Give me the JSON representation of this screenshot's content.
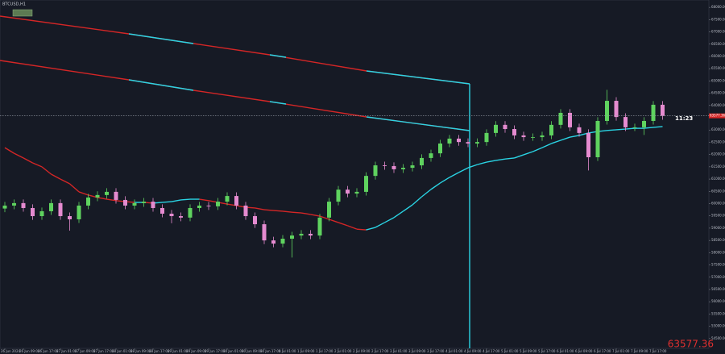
{
  "chart_data": {
    "type": "candlestick",
    "title": "BTCUSD,H1",
    "countdown": "11:23",
    "ylim": [
      54100,
      68300
    ],
    "yticks": [
      {
        "value": 54500,
        "label": "54500.00"
      },
      {
        "value": 55000,
        "label": "55000.00"
      },
      {
        "value": 55500,
        "label": "55500.00"
      },
      {
        "value": 56000,
        "label": "56000.00"
      },
      {
        "value": 56500,
        "label": "56500.00"
      },
      {
        "value": 57000,
        "label": "57000.00"
      },
      {
        "value": 57500,
        "label": "57500.00"
      },
      {
        "value": 58000,
        "label": "58000.00"
      },
      {
        "value": 58500,
        "label": "58500.00"
      },
      {
        "value": 59000,
        "label": "59000.00"
      },
      {
        "value": 59500,
        "label": "59500.00"
      },
      {
        "value": 60000,
        "label": "60000.00"
      },
      {
        "value": 60500,
        "label": "60500.00"
      },
      {
        "value": 61000,
        "label": "61000.00"
      },
      {
        "value": 61500,
        "label": "61500.00"
      },
      {
        "value": 62000,
        "label": "62000.00"
      },
      {
        "value": 62500,
        "label": "62500.00"
      },
      {
        "value": 63000,
        "label": "63000.00"
      },
      {
        "value": 64000,
        "label": "64000.00"
      },
      {
        "value": 64500,
        "label": "64500.00"
      },
      {
        "value": 65000,
        "label": "65000.00"
      },
      {
        "value": 65500,
        "label": "65500.00"
      },
      {
        "value": 66000,
        "label": "66000.00"
      },
      {
        "value": 66500,
        "label": "66500.00"
      },
      {
        "value": 67000,
        "label": "67000.00"
      },
      {
        "value": 67500,
        "label": "67500.00"
      },
      {
        "value": 68000,
        "label": "68000.00"
      }
    ],
    "categories": [
      "26 Jun 2024",
      null,
      "26 Jun 09:00",
      null,
      "26 Jun 17:00",
      null,
      "27 Jun 01:00",
      null,
      "27 Jun 09:00",
      null,
      "27 Jun 17:00",
      null,
      "28 Jun 01:00",
      null,
      "28 Jun 09:00",
      null,
      "28 Jun 17:00",
      null,
      "29 Jun 01:00",
      null,
      "29 Jun 09:00",
      null,
      "29 Jun 17:00",
      null,
      "30 Jun 01:00",
      null,
      "30 Jun 09:00",
      null,
      "30 Jun 17:00",
      null,
      "1 Jul 01:00",
      null,
      "1 Jul 09:00",
      null,
      "1 Jul 17:00",
      null,
      "2 Jul 01:00",
      null,
      "2 Jul 09:00",
      null,
      "2 Jul 17:00",
      null,
      "3 Jul 01:00",
      null,
      "3 Jul 09:00",
      null,
      "3 Jul 17:00",
      null,
      "4 Jul 01:00",
      null,
      "4 Jul 09:00",
      null,
      "4 Jul 17:00",
      null,
      "5 Jul 01:00",
      null,
      "5 Jul 09:00",
      null,
      "5 Jul 17:00",
      null,
      "6 Jul 01:00",
      null,
      "6 Jul 09:00",
      null,
      "6 Jul 17:00",
      null,
      "7 Jul 01:00",
      null,
      "7 Jul 09:00",
      null,
      "7 Jul 17:00",
      null
    ],
    "open": [
      59800,
      59920,
      60020,
      59820,
      59490,
      59690,
      60020,
      59490,
      59360,
      59920,
      60250,
      60350,
      60480,
      60150,
      59920,
      60020,
      60080,
      59820,
      59590,
      59490,
      59430,
      59820,
      59920,
      59890,
      60080,
      60310,
      59920,
      59490,
      59160,
      58500,
      58370,
      58570,
      58700,
      58770,
      58700,
      59430,
      60080,
      60570,
      60410,
      60480,
      61130,
      61560,
      61530,
      61400,
      61460,
      61560,
      61860,
      62050,
      62450,
      62650,
      62510,
      62450,
      62510,
      62880,
      63210,
      63040,
      62780,
      62710,
      62710,
      62780,
      63210,
      63700,
      63110,
      62880,
      61890,
      63370,
      64190,
      63530,
      63110,
      63110,
      63370,
      64030
    ],
    "high": [
      60070,
      60170,
      60170,
      59970,
      59840,
      60170,
      60170,
      59640,
      60070,
      60400,
      60500,
      60630,
      60630,
      60300,
      60170,
      60230,
      60230,
      59970,
      59740,
      59640,
      59970,
      60070,
      60070,
      60230,
      60460,
      60460,
      60070,
      59640,
      59310,
      58650,
      58720,
      58850,
      58920,
      58920,
      59580,
      60230,
      60720,
      60720,
      60630,
      61280,
      61710,
      61710,
      61680,
      61610,
      61710,
      62010,
      62200,
      62600,
      62800,
      62800,
      62660,
      62660,
      63030,
      63360,
      63360,
      63190,
      62930,
      62860,
      62930,
      63360,
      63850,
      63850,
      63260,
      63030,
      63520,
      64640,
      64340,
      63680,
      63260,
      63520,
      64180,
      64180
    ],
    "low": [
      59650,
      59770,
      59670,
      59340,
      59340,
      59540,
      59340,
      58900,
      59210,
      59770,
      60100,
      60200,
      60000,
      59770,
      59770,
      59870,
      59670,
      59440,
      59200,
      59280,
      59280,
      59670,
      59740,
      59740,
      59930,
      59770,
      59340,
      59010,
      58350,
      58220,
      58220,
      57800,
      58550,
      58550,
      58550,
      59280,
      59930,
      60260,
      60260,
      60330,
      60980,
      61380,
      61250,
      61250,
      61310,
      61410,
      61710,
      61900,
      62300,
      62360,
      62300,
      62300,
      62360,
      62730,
      62890,
      62630,
      62560,
      62560,
      62560,
      62630,
      63060,
      62960,
      62730,
      61350,
      61740,
      63220,
      63380,
      62960,
      62960,
      62800,
      63220,
      63420
    ],
    "close": [
      59920,
      60020,
      59820,
      59490,
      59690,
      60020,
      59490,
      59360,
      59920,
      60250,
      60350,
      60480,
      60150,
      59920,
      60020,
      60080,
      59820,
      59590,
      59490,
      59430,
      59820,
      59920,
      59890,
      60080,
      60310,
      59920,
      59490,
      59160,
      58500,
      58370,
      58570,
      58700,
      58770,
      58700,
      59430,
      60080,
      60570,
      60410,
      60480,
      61130,
      61560,
      61530,
      61400,
      61460,
      61560,
      61860,
      62050,
      62450,
      62650,
      62510,
      62450,
      62510,
      62880,
      63210,
      63040,
      62780,
      62710,
      62710,
      62780,
      63210,
      63700,
      63110,
      62880,
      61890,
      63370,
      64190,
      63530,
      63110,
      63110,
      63370,
      64030,
      63577.36
    ],
    "up_color": "#5fd35f",
    "down_color": "#e58bd0",
    "series": [
      {
        "up_color": "#2ad4e4",
        "down_color": "#d42626",
        "values": [
          62280,
          62050,
          61860,
          61660,
          61500,
          61200,
          61000,
          60810,
          60480,
          60350,
          60250,
          60180,
          60120,
          60080,
          60050,
          60050,
          60020,
          60050,
          60080,
          60150,
          60180,
          60180,
          60120,
          60050,
          59980,
          59920,
          59850,
          59820,
          59750,
          59720,
          59690,
          59650,
          59620,
          59560,
          59490,
          59360,
          59230,
          59100,
          58960,
          58930,
          59030,
          59230,
          59430,
          59690,
          59950,
          60280,
          60580,
          60840,
          61070,
          61270,
          61460,
          61590,
          61690,
          61760,
          61820,
          61860,
          61990,
          62120,
          62280,
          62450,
          62580,
          62710,
          62780,
          62880,
          62940,
          62980,
          63010,
          63040,
          63070,
          63070,
          63110,
          63140
        ]
      }
    ]
  }
}
